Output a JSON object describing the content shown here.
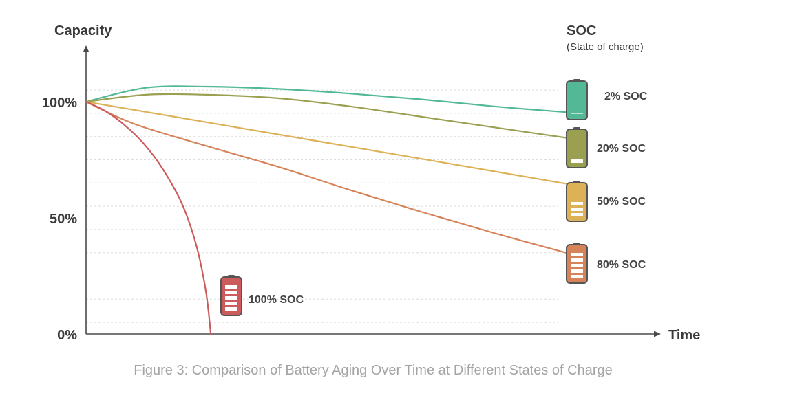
{
  "chart_data": {
    "type": "line",
    "title": "",
    "xlabel": "Time",
    "ylabel": "Capacity",
    "ylim": [
      0,
      100
    ],
    "y_ticks": [
      {
        "value": 100,
        "label": "100%"
      },
      {
        "value": 50,
        "label": "50%"
      },
      {
        "value": 0,
        "label": "0%"
      }
    ],
    "grid": "dashed-horizontal",
    "legend": {
      "title": "SOC",
      "subtitle": "(State of charge)",
      "placement": "right"
    },
    "series": [
      {
        "name": "2% SOC",
        "color": "#52b896",
        "battery_bars": 1,
        "x": [
          0,
          0.125,
          0.25,
          0.4,
          0.55,
          0.7,
          0.85,
          1.0
        ],
        "y": [
          100,
          106,
          106.5,
          105.5,
          103.5,
          101,
          98,
          95.5
        ]
      },
      {
        "name": "20% SOC",
        "color": "#9aa050",
        "battery_bars": 1,
        "x": [
          0,
          0.125,
          0.25,
          0.4,
          0.55,
          0.7,
          0.85,
          1.0
        ],
        "y": [
          100,
          103,
          103,
          101.5,
          98,
          93.5,
          89,
          84.5
        ]
      },
      {
        "name": "50% SOC",
        "color": "#ddb257",
        "battery_bars": 3,
        "x": [
          0,
          0.25,
          0.5,
          0.75,
          1.0
        ],
        "y": [
          100,
          91.2,
          82.4,
          73.6,
          64.7
        ]
      },
      {
        "name": "80% SOC",
        "color": "#d6835a",
        "battery_bars": 5,
        "x": [
          0,
          0.1,
          0.25,
          0.4,
          0.55,
          0.7,
          0.85,
          1.0
        ],
        "y": [
          100,
          90.5,
          81,
          72,
          62,
          52.5,
          43.5,
          35
        ]
      },
      {
        "name": "100% SOC",
        "color": "#cc5b5b",
        "battery_bars": 5,
        "x": [
          0,
          0.04,
          0.08,
          0.12,
          0.16,
          0.2,
          0.23,
          0.25,
          0.26
        ],
        "y": [
          100,
          96,
          90,
          82,
          71,
          56,
          38,
          18,
          0
        ]
      }
    ]
  },
  "caption": "Figure 3: Comparison of Battery Aging Over Time at Different States of Charge"
}
